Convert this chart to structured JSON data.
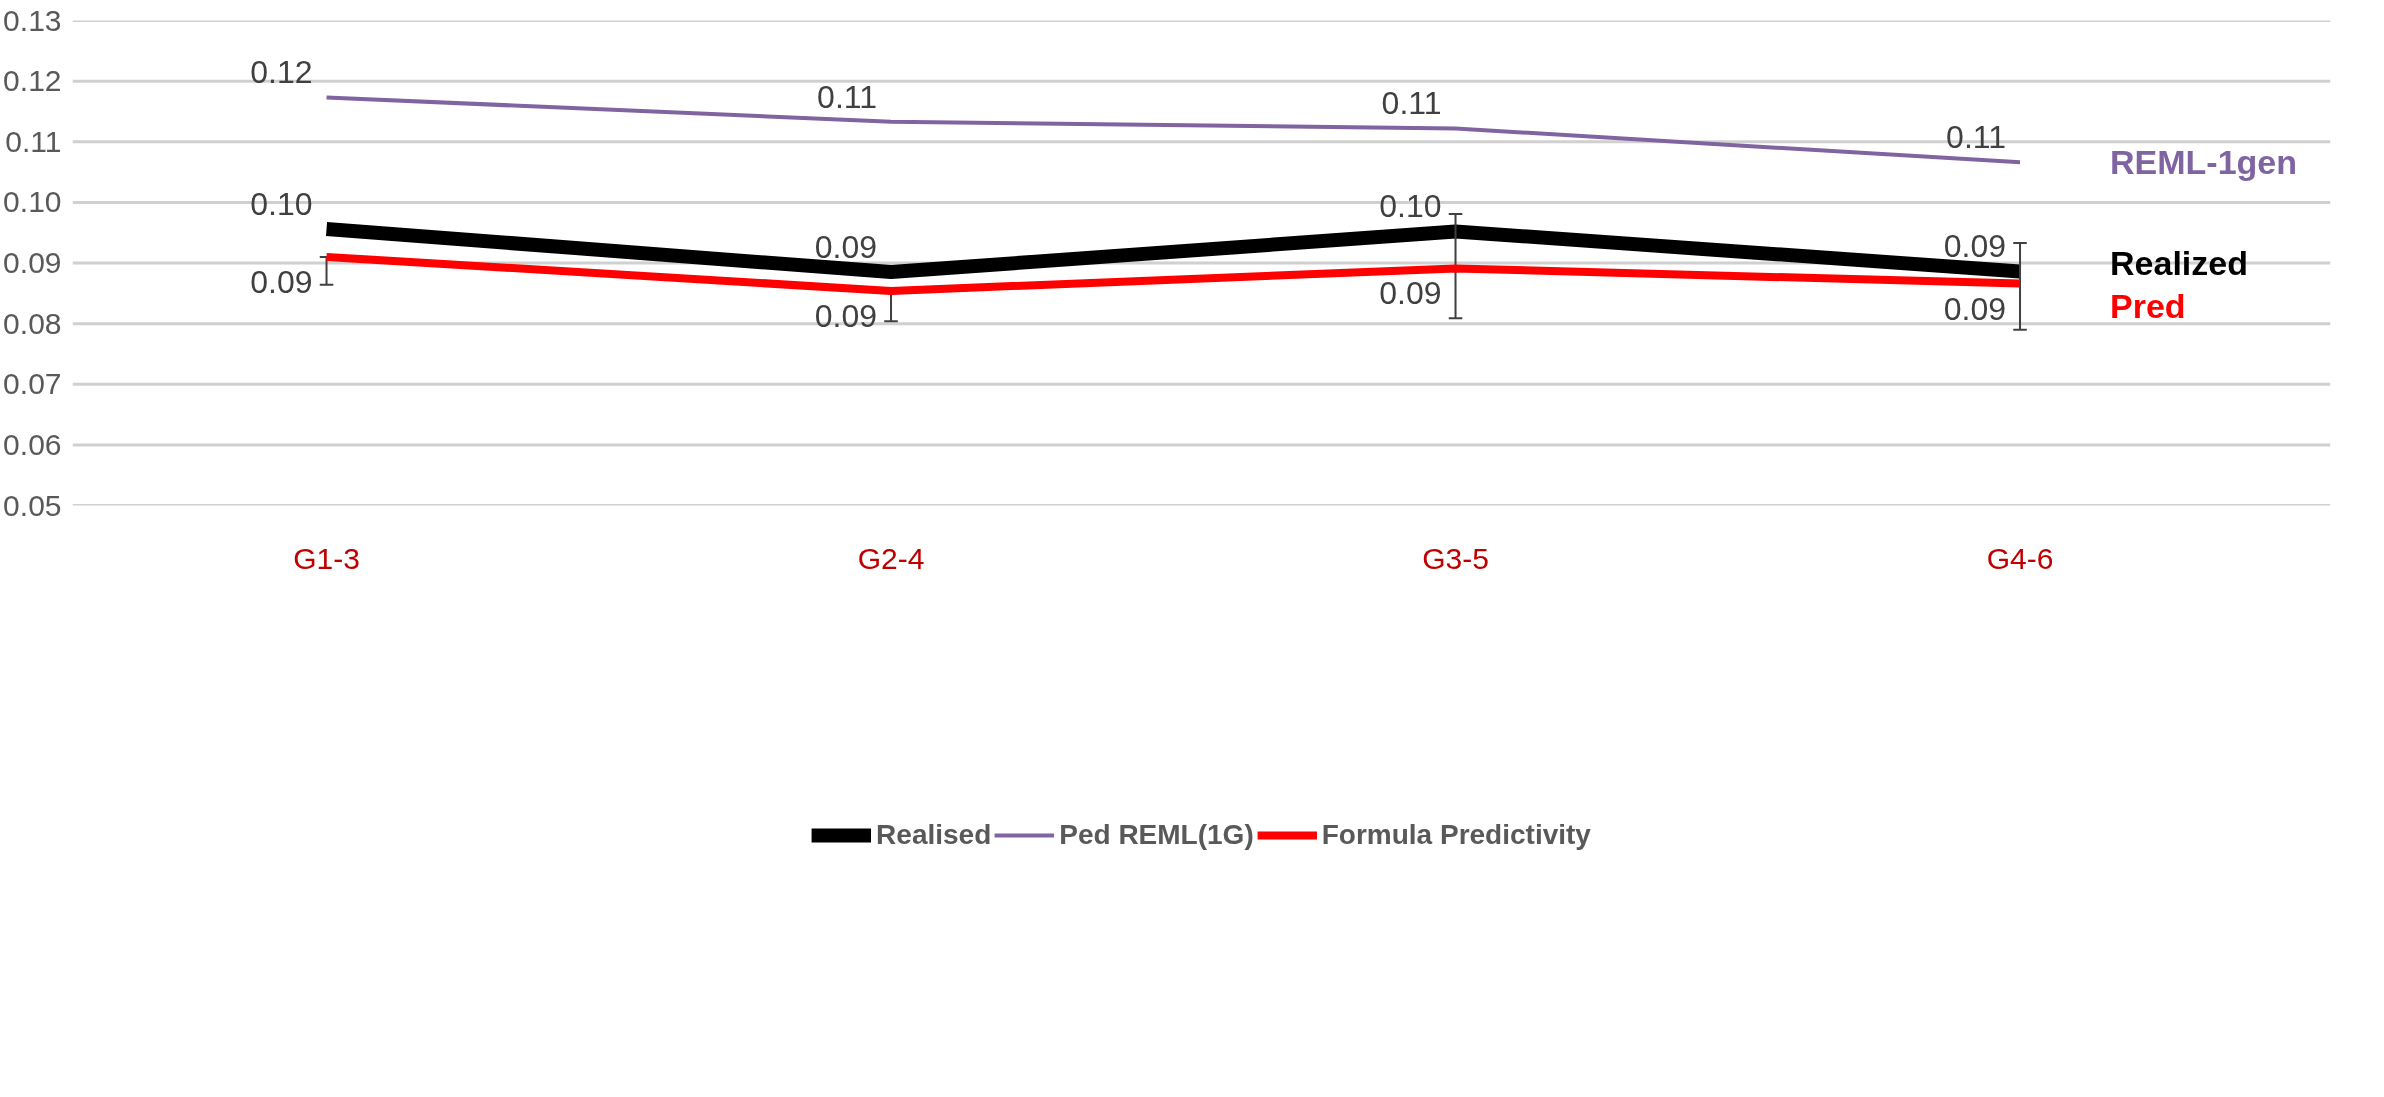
{
  "chart_data": {
    "type": "line",
    "categories": [
      "G1-3",
      "G2-4",
      "G3-5",
      "G4-6"
    ],
    "series": [
      {
        "name": "Realised",
        "color": "#000000",
        "values": [
          0.0956,
          0.0885,
          0.0952,
          0.0886
        ],
        "value_labels": [
          "0.10",
          "0.09",
          "0.10",
          "0.09"
        ]
      },
      {
        "name": "Ped REML(1G)",
        "color": "#8064a2",
        "values": [
          0.1173,
          0.1133,
          0.1122,
          0.1066
        ],
        "value_labels": [
          "0.12",
          "0.11",
          "0.11",
          "0.11"
        ]
      },
      {
        "name": "Formula Predictivity",
        "color": "#ff0000",
        "values": [
          0.091,
          0.0854,
          0.0891,
          0.0866
        ],
        "value_labels": [
          "0.09",
          "0.09",
          "0.09",
          "0.09"
        ],
        "errors": [
          [
            0.0864,
            0.091
          ],
          [
            0.0804,
            0.0854
          ],
          [
            0.0809,
            0.0981
          ],
          [
            0.079,
            0.0933
          ]
        ]
      }
    ],
    "ylim": [
      0.05,
      0.13
    ],
    "yticks": [
      0.05,
      0.06,
      0.07,
      0.08,
      0.09,
      {
        "value": 0.1,
        "label": "0.10"
      },
      0.11,
      0.12,
      0.13
    ],
    "grid": "y",
    "legend": "bottom",
    "line_style": "solid",
    "annotations": [
      "REML-1gen",
      "Realized",
      "Pred"
    ]
  }
}
